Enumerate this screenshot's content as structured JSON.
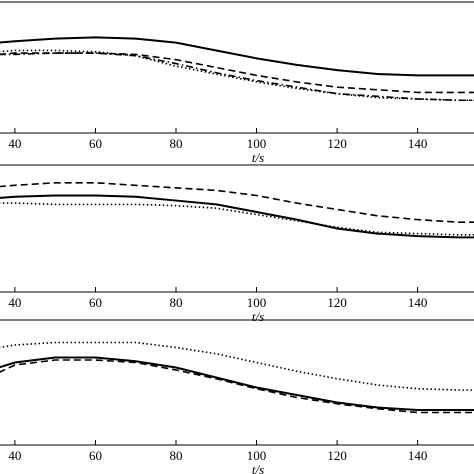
{
  "chart_data": [
    {
      "type": "line",
      "xlabel": "t/s",
      "x": [
        36,
        40,
        50,
        60,
        70,
        80,
        90,
        100,
        110,
        120,
        130,
        140,
        150,
        154
      ],
      "xlim": [
        36.3,
        154
      ],
      "xticks": [
        40,
        60,
        80,
        100,
        120,
        140
      ],
      "ylim": [
        0,
        100
      ],
      "series": [
        {
          "color": "#000000",
          "style": "solid",
          "values": [
            69,
            70,
            72,
            73,
            72,
            69,
            63,
            57,
            52,
            48,
            45,
            44,
            44,
            44
          ]
        },
        {
          "color": "#000000",
          "style": "dashed",
          "values": [
            60,
            61,
            61,
            61,
            60,
            56,
            50,
            44,
            39,
            35,
            33,
            31,
            31,
            31
          ]
        },
        {
          "color": "#000000",
          "style": "dotted",
          "values": [
            62,
            63,
            63,
            62,
            59,
            51,
            45,
            39,
            34,
            30,
            27,
            26,
            25,
            25
          ]
        },
        {
          "color": "#000000",
          "style": "dashdot",
          "values": [
            60,
            60,
            61,
            61,
            59,
            53,
            46,
            40,
            35,
            30,
            28,
            26,
            25,
            25
          ]
        }
      ]
    },
    {
      "type": "line",
      "xlabel": "t/s",
      "x": [
        36,
        40,
        50,
        60,
        70,
        80,
        90,
        100,
        110,
        120,
        130,
        140,
        150,
        154
      ],
      "xlim": [
        36.3,
        154
      ],
      "xticks": [
        40,
        60,
        80,
        100,
        120,
        140
      ],
      "ylim": [
        0,
        100
      ],
      "series": [
        {
          "color": "#000000",
          "style": "solid",
          "values": [
            74,
            75,
            76,
            76,
            75,
            72,
            69,
            63,
            57,
            50,
            46,
            44,
            43,
            43
          ]
        },
        {
          "color": "#000000",
          "style": "dashed",
          "values": [
            83,
            84,
            86,
            86,
            84,
            82,
            80,
            76,
            70,
            65,
            60,
            57,
            55,
            55
          ]
        },
        {
          "color": "#000000",
          "style": "dotted",
          "values": [
            70,
            70,
            69,
            69,
            69,
            68,
            66,
            61,
            56,
            51,
            47,
            46,
            45,
            45
          ]
        }
      ]
    },
    {
      "type": "line",
      "xlabel": "t/s",
      "x": [
        36,
        40,
        50,
        60,
        70,
        80,
        90,
        100,
        110,
        120,
        130,
        140,
        150,
        154
      ],
      "xlim": [
        36.3,
        154
      ],
      "xticks": [
        40,
        60,
        80,
        100,
        120,
        140
      ],
      "ylim": [
        0,
        100
      ],
      "series": [
        {
          "color": "#000000",
          "style": "solid",
          "values": [
            62,
            66,
            70,
            70,
            67,
            62,
            54,
            46,
            40,
            34,
            30,
            28,
            28,
            28
          ]
        },
        {
          "color": "#000000",
          "style": "dashed",
          "values": [
            58,
            64,
            68,
            68,
            66,
            60,
            53,
            45,
            38,
            33,
            29,
            26,
            26,
            26
          ]
        },
        {
          "color": "#000000",
          "style": "dotted",
          "values": [
            78,
            80,
            82,
            82,
            82,
            78,
            73,
            66,
            59,
            53,
            48,
            45,
            44,
            44
          ]
        }
      ]
    }
  ]
}
